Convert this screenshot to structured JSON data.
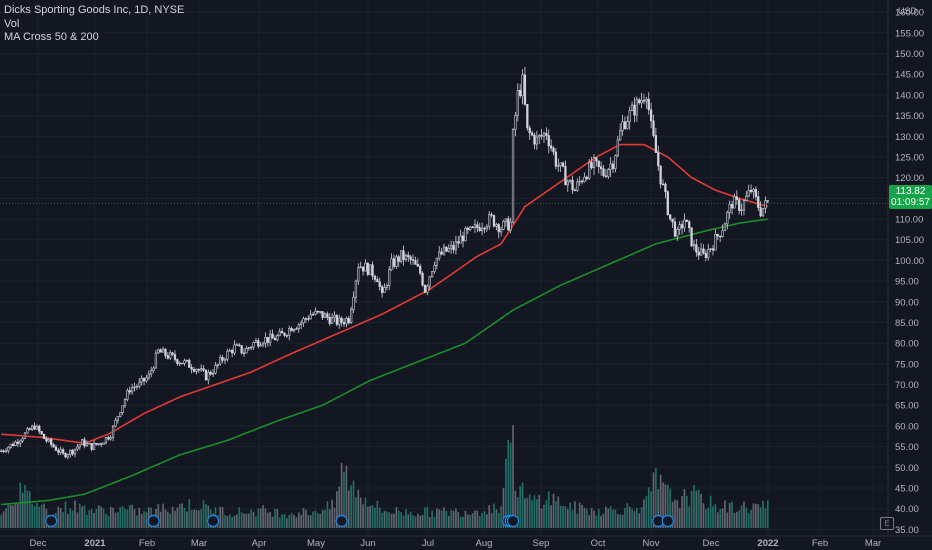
{
  "legend": {
    "symbol": "Dicks Sporting Goods Inc, 1D, NYSE",
    "volume": "Vol",
    "indicator": "MA Cross 50 & 200"
  },
  "price_axis": {
    "currency": "USD",
    "last_price": "113.82",
    "countdown": "01:09:57",
    "scale_button": "E"
  },
  "colors": {
    "background": "#131722",
    "up": "#d1d4dc",
    "down": "#d1d4dc",
    "ma50": "#e53935",
    "ma200": "#1b8e2a",
    "volume_up": "#26786f",
    "volume_down": "#6b6f78",
    "last_price_tag": "#16a34a",
    "earnings_marker": "#1e88e5"
  },
  "chart_data": {
    "type": "candlestick",
    "title": "Dicks Sporting Goods Inc, 1D, NYSE",
    "ylim": [
      32,
      162
    ],
    "y_ticks": [
      35,
      40,
      45,
      50,
      55,
      60,
      65,
      70,
      75,
      80,
      85,
      90,
      95,
      100,
      105,
      110,
      115,
      120,
      125,
      130,
      135,
      140,
      145,
      150,
      155,
      160
    ],
    "x_tick_labels": [
      "Dec",
      "2021",
      "Feb",
      "Mar",
      "Apr",
      "May",
      "Jun",
      "Jul",
      "Aug",
      "Sep",
      "Oct",
      "Nov",
      "Dec",
      "2022",
      "Feb",
      "Mar"
    ],
    "price_anchors": [
      [
        0,
        54
      ],
      [
        6,
        56
      ],
      [
        10,
        58
      ],
      [
        14,
        60
      ],
      [
        18,
        57
      ],
      [
        22,
        55
      ],
      [
        26,
        53
      ],
      [
        30,
        54
      ],
      [
        34,
        56
      ],
      [
        38,
        55
      ],
      [
        42,
        56
      ],
      [
        46,
        58
      ],
      [
        50,
        64
      ],
      [
        54,
        69
      ],
      [
        58,
        70
      ],
      [
        62,
        72
      ],
      [
        66,
        78
      ],
      [
        70,
        77
      ],
      [
        74,
        76
      ],
      [
        78,
        75
      ],
      [
        82,
        74
      ],
      [
        86,
        72
      ],
      [
        90,
        74
      ],
      [
        94,
        77
      ],
      [
        98,
        79
      ],
      [
        102,
        78
      ],
      [
        106,
        80
      ],
      [
        110,
        81
      ],
      [
        114,
        81
      ],
      [
        118,
        82
      ],
      [
        122,
        84
      ],
      [
        126,
        85
      ],
      [
        130,
        87
      ],
      [
        134,
        87
      ],
      [
        138,
        86
      ],
      [
        142,
        85
      ],
      [
        146,
        86
      ],
      [
        150,
        99
      ],
      [
        154,
        98
      ],
      [
        158,
        96
      ],
      [
        160,
        91
      ],
      [
        164,
        99
      ],
      [
        168,
        101
      ],
      [
        172,
        100
      ],
      [
        176,
        97
      ],
      [
        178,
        93
      ],
      [
        182,
        100
      ],
      [
        186,
        102
      ],
      [
        190,
        103
      ],
      [
        194,
        106
      ],
      [
        198,
        107
      ],
      [
        202,
        109
      ],
      [
        206,
        110
      ],
      [
        210,
        108
      ],
      [
        214,
        109
      ],
      [
        215,
        130
      ],
      [
        217,
        140
      ],
      [
        219,
        143
      ],
      [
        221,
        131
      ],
      [
        225,
        129
      ],
      [
        229,
        131
      ],
      [
        233,
        124
      ],
      [
        237,
        120
      ],
      [
        241,
        117
      ],
      [
        245,
        121
      ],
      [
        249,
        123
      ],
      [
        253,
        121
      ],
      [
        257,
        124
      ],
      [
        261,
        133
      ],
      [
        265,
        136
      ],
      [
        269,
        139
      ],
      [
        271,
        141
      ],
      [
        273,
        132
      ],
      [
        277,
        120
      ],
      [
        281,
        110
      ],
      [
        284,
        106
      ],
      [
        287,
        110
      ],
      [
        291,
        103
      ],
      [
        295,
        101
      ],
      [
        299,
        104
      ],
      [
        303,
        108
      ],
      [
        307,
        114
      ],
      [
        311,
        113
      ],
      [
        315,
        117
      ],
      [
        319,
        112
      ],
      [
        322,
        114
      ]
    ],
    "volume_bars": [
      [
        -1,
        1
      ],
      [
        8,
        2.5
      ],
      [
        20,
        1.2
      ],
      [
        30,
        1.5
      ],
      [
        40,
        1.2
      ],
      [
        50,
        1.3
      ],
      [
        60,
        1.1
      ],
      [
        70,
        1.4
      ],
      [
        80,
        1.6
      ],
      [
        84,
        1.5
      ],
      [
        90,
        1.2
      ],
      [
        100,
        1.1
      ],
      [
        110,
        1.2
      ],
      [
        120,
        1
      ],
      [
        130,
        1.1
      ],
      [
        140,
        1.5
      ],
      [
        143,
        4
      ],
      [
        150,
        2.4
      ],
      [
        160,
        1.2
      ],
      [
        170,
        1.1
      ],
      [
        180,
        1.1
      ],
      [
        190,
        1.1
      ],
      [
        200,
        1.2
      ],
      [
        210,
        1.5
      ],
      [
        214,
        7.5
      ],
      [
        216,
        3.2
      ],
      [
        219,
        2.5
      ],
      [
        221,
        1.8
      ],
      [
        230,
        2.1
      ],
      [
        240,
        1.4
      ],
      [
        250,
        1.2
      ],
      [
        260,
        1.3
      ],
      [
        270,
        1.5
      ],
      [
        275,
        3.3
      ],
      [
        280,
        2.3
      ],
      [
        285,
        1.9
      ],
      [
        290,
        2.3
      ],
      [
        300,
        1.5
      ],
      [
        310,
        1.4
      ],
      [
        320,
        1.5
      ]
    ],
    "volume_max": 8,
    "ma50": [
      [
        0,
        58
      ],
      [
        18,
        57.2
      ],
      [
        35,
        55.8
      ],
      [
        45,
        58
      ],
      [
        60,
        63
      ],
      [
        75,
        67
      ],
      [
        90,
        70
      ],
      [
        105,
        73
      ],
      [
        120,
        77
      ],
      [
        140,
        82
      ],
      [
        160,
        87
      ],
      [
        180,
        93
      ],
      [
        200,
        101
      ],
      [
        210,
        104
      ],
      [
        220,
        113
      ],
      [
        230,
        117
      ],
      [
        240,
        121
      ],
      [
        250,
        125
      ],
      [
        260,
        128
      ],
      [
        270,
        128
      ],
      [
        280,
        125
      ],
      [
        290,
        120
      ],
      [
        300,
        117
      ],
      [
        310,
        115
      ],
      [
        322,
        113
      ]
    ],
    "ma200": [
      [
        0,
        41
      ],
      [
        20,
        42
      ],
      [
        35,
        43.5
      ],
      [
        55,
        48
      ],
      [
        75,
        53
      ],
      [
        95,
        56.5
      ],
      [
        115,
        61
      ],
      [
        135,
        65
      ],
      [
        155,
        71
      ],
      [
        175,
        75.5
      ],
      [
        195,
        80
      ],
      [
        215,
        88
      ],
      [
        235,
        94
      ],
      [
        255,
        99
      ],
      [
        275,
        104
      ],
      [
        295,
        107
      ],
      [
        310,
        109
      ],
      [
        322,
        110
      ]
    ],
    "earnings_markers": [
      21,
      64,
      89,
      143,
      213,
      214,
      215,
      276,
      280
    ]
  }
}
